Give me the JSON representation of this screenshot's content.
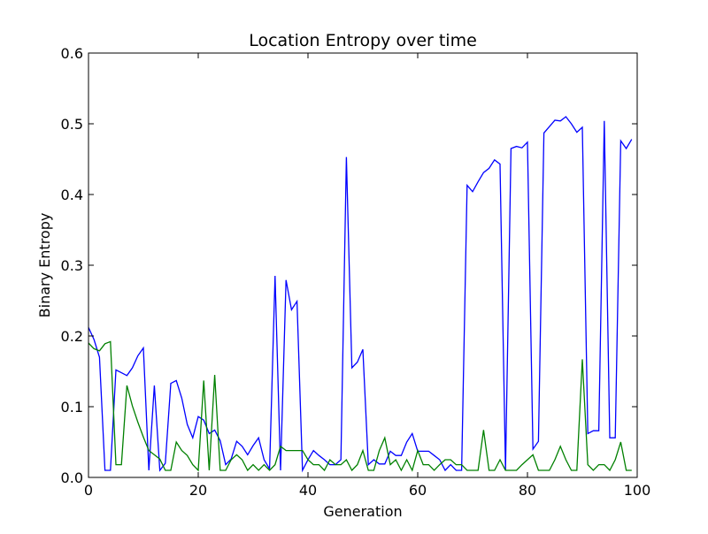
{
  "chart_data": {
    "type": "line",
    "title": "Location Entropy over time",
    "xlabel": "Generation",
    "ylabel": "Binary Entropy",
    "xlim": [
      0,
      100
    ],
    "ylim": [
      0,
      0.6
    ],
    "xticks": [
      0,
      20,
      40,
      60,
      80,
      100
    ],
    "yticks": [
      0.0,
      0.1,
      0.2,
      0.3,
      0.4,
      0.5,
      0.6
    ],
    "ytick_labels": [
      "0.0",
      "0.1",
      "0.2",
      "0.3",
      "0.4",
      "0.5",
      "0.6"
    ],
    "grid": false,
    "legend": "none",
    "series": [
      {
        "color": "#0000ff",
        "x": [
          0,
          1,
          2,
          3,
          4,
          5,
          6,
          7,
          8,
          9,
          10,
          11,
          12,
          13,
          14,
          15,
          16,
          17,
          18,
          19,
          20,
          21,
          22,
          23,
          24,
          25,
          26,
          27,
          28,
          29,
          30,
          31,
          32,
          33,
          34,
          35,
          36,
          37,
          38,
          39,
          40,
          41,
          42,
          43,
          44,
          45,
          46,
          47,
          48,
          49,
          50,
          51,
          52,
          53,
          54,
          55,
          56,
          57,
          58,
          59,
          60,
          61,
          62,
          63,
          64,
          65,
          66,
          67,
          68,
          69,
          70,
          71,
          72,
          73,
          74,
          75,
          76,
          77,
          78,
          79,
          80,
          81,
          82,
          83,
          84,
          85,
          86,
          87,
          88,
          89,
          90,
          91,
          92,
          93,
          94,
          95,
          96,
          97,
          98,
          99
        ],
        "values": [
          0.212,
          0.195,
          0.17,
          0.01,
          0.01,
          0.152,
          0.148,
          0.144,
          0.155,
          0.172,
          0.183,
          0.01,
          0.13,
          0.01,
          0.02,
          0.133,
          0.137,
          0.112,
          0.075,
          0.056,
          0.086,
          0.081,
          0.062,
          0.067,
          0.052,
          0.018,
          0.026,
          0.051,
          0.044,
          0.032,
          0.045,
          0.056,
          0.025,
          0.012,
          0.285,
          0.01,
          0.279,
          0.237,
          0.249,
          0.01,
          0.025,
          0.038,
          0.031,
          0.025,
          0.018,
          0.018,
          0.025,
          0.453,
          0.155,
          0.163,
          0.181,
          0.018,
          0.025,
          0.019,
          0.019,
          0.037,
          0.031,
          0.031,
          0.05,
          0.062,
          0.037,
          0.037,
          0.037,
          0.031,
          0.025,
          0.01,
          0.018,
          0.01,
          0.01,
          0.413,
          0.404,
          0.418,
          0.431,
          0.437,
          0.449,
          0.443,
          0.01,
          0.465,
          0.468,
          0.466,
          0.474,
          0.04,
          0.051,
          0.487,
          0.496,
          0.505,
          0.504,
          0.51,
          0.5,
          0.488,
          0.495,
          0.062,
          0.066,
          0.066,
          0.504,
          0.056,
          0.056,
          0.476,
          0.465,
          0.478
        ]
      },
      {
        "color": "#008000",
        "x": [
          0,
          1,
          2,
          3,
          4,
          5,
          6,
          7,
          8,
          9,
          10,
          11,
          12,
          13,
          14,
          15,
          16,
          17,
          18,
          19,
          20,
          21,
          22,
          23,
          24,
          25,
          26,
          27,
          28,
          29,
          30,
          31,
          32,
          33,
          34,
          35,
          36,
          37,
          38,
          39,
          40,
          41,
          42,
          43,
          44,
          45,
          46,
          47,
          48,
          49,
          50,
          51,
          52,
          53,
          54,
          55,
          56,
          57,
          58,
          59,
          60,
          61,
          62,
          63,
          64,
          65,
          66,
          67,
          68,
          69,
          70,
          71,
          72,
          73,
          74,
          75,
          76,
          77,
          78,
          79,
          80,
          81,
          82,
          83,
          84,
          85,
          86,
          87,
          88,
          89,
          90,
          91,
          92,
          93,
          94,
          95,
          96,
          97,
          98,
          99
        ],
        "values": [
          0.19,
          0.182,
          0.179,
          0.189,
          0.192,
          0.018,
          0.018,
          0.13,
          0.101,
          0.078,
          0.057,
          0.038,
          0.032,
          0.026,
          0.01,
          0.01,
          0.05,
          0.038,
          0.031,
          0.018,
          0.01,
          0.137,
          0.01,
          0.145,
          0.01,
          0.01,
          0.025,
          0.032,
          0.025,
          0.01,
          0.018,
          0.01,
          0.018,
          0.01,
          0.018,
          0.044,
          0.038,
          0.038,
          0.038,
          0.038,
          0.025,
          0.018,
          0.018,
          0.01,
          0.025,
          0.018,
          0.018,
          0.025,
          0.01,
          0.018,
          0.038,
          0.01,
          0.01,
          0.038,
          0.056,
          0.018,
          0.025,
          0.01,
          0.025,
          0.01,
          0.038,
          0.018,
          0.018,
          0.01,
          0.018,
          0.025,
          0.025,
          0.018,
          0.018,
          0.01,
          0.01,
          0.01,
          0.067,
          0.01,
          0.01,
          0.025,
          0.01,
          0.01,
          0.01,
          0.018,
          0.025,
          0.032,
          0.01,
          0.01,
          0.01,
          0.025,
          0.044,
          0.025,
          0.01,
          0.01,
          0.167,
          0.018,
          0.01,
          0.018,
          0.018,
          0.01,
          0.025,
          0.05,
          0.01,
          0.01
        ]
      }
    ]
  }
}
